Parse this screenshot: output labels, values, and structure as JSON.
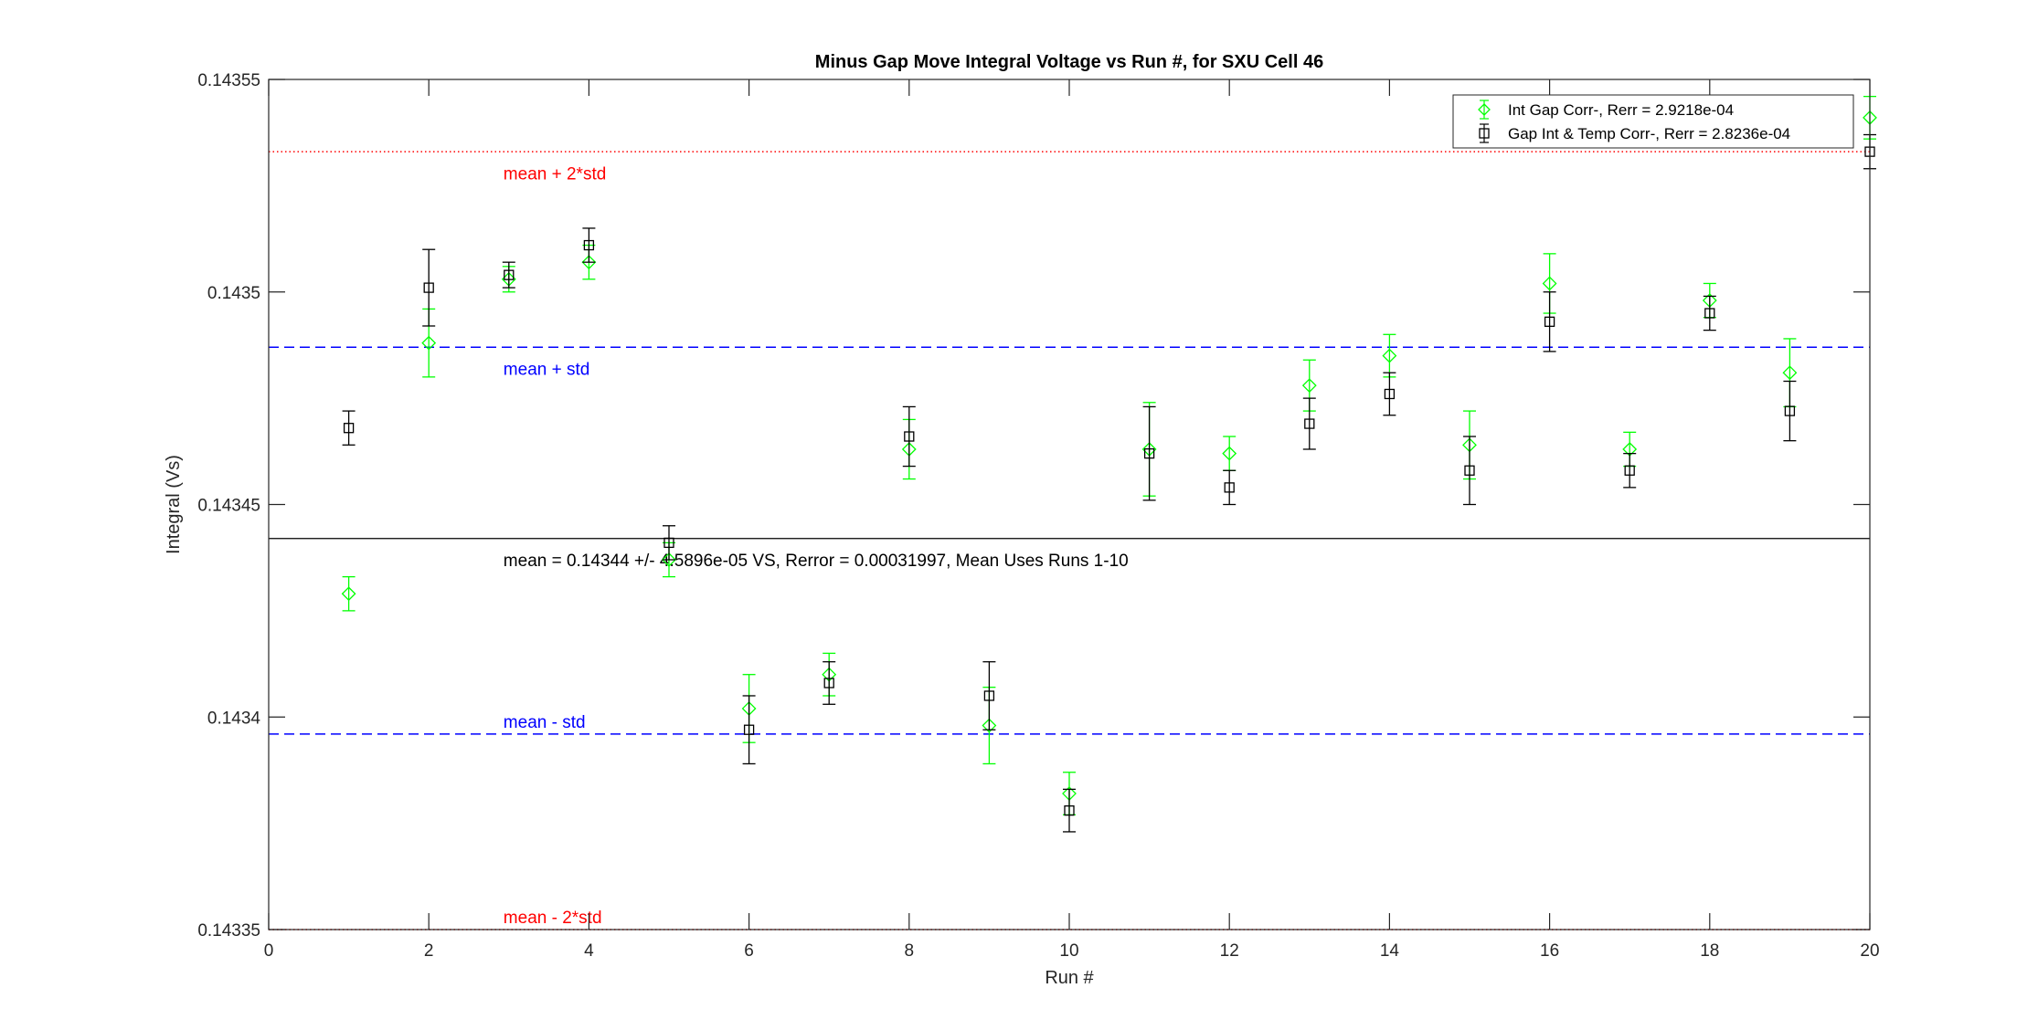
{
  "chart_data": {
    "type": "scatter",
    "title": "Minus Gap Move Integral Voltage vs Run #, for SXU Cell 46",
    "xlabel": "Run #",
    "ylabel": "Integral (Vs)",
    "xlim": [
      0,
      20
    ],
    "ylim": [
      0.14335,
      0.14355
    ],
    "x_ticks": [
      0,
      2,
      4,
      6,
      8,
      10,
      12,
      14,
      16,
      18,
      20
    ],
    "y_ticks": [
      0.14335,
      0.1434,
      0.14345,
      0.1435,
      0.14355
    ],
    "y_tick_labels": [
      "0.14335",
      "0.1434",
      "0.14345",
      "0.1435",
      "0.14355"
    ],
    "grid": false,
    "legend_position": "top-right",
    "series": [
      {
        "name": "Int Gap Corr-, Rerr = 2.9218e-04",
        "marker": "diamond",
        "color": "#00ff00",
        "x": [
          1,
          2,
          3,
          4,
          5,
          6,
          7,
          8,
          9,
          10,
          11,
          12,
          13,
          14,
          15,
          16,
          17,
          18,
          19,
          20
        ],
        "y": [
          0.143429,
          0.143488,
          0.143503,
          0.143507,
          0.143437,
          0.143402,
          0.14341,
          0.143463,
          0.143398,
          0.143382,
          0.143463,
          0.143462,
          0.143478,
          0.143485,
          0.143464,
          0.143502,
          0.143463,
          0.143498,
          0.143481,
          0.143541
        ],
        "err": [
          4e-06,
          8e-06,
          3e-06,
          4e-06,
          4e-06,
          8e-06,
          5e-06,
          7e-06,
          9e-06,
          5e-06,
          1.1e-05,
          4e-06,
          6e-06,
          5e-06,
          8e-06,
          7e-06,
          4e-06,
          4e-06,
          8e-06,
          5e-06
        ]
      },
      {
        "name": "Gap Int & Temp Corr-, Rerr = 2.8236e-04",
        "marker": "square",
        "color": "#000000",
        "x": [
          1,
          2,
          3,
          4,
          5,
          6,
          7,
          8,
          9,
          10,
          11,
          12,
          13,
          14,
          15,
          16,
          17,
          18,
          19,
          20
        ],
        "y": [
          0.143468,
          0.143501,
          0.143504,
          0.143511,
          0.143441,
          0.143397,
          0.143408,
          0.143466,
          0.143405,
          0.143378,
          0.143462,
          0.143454,
          0.143469,
          0.143476,
          0.143458,
          0.143493,
          0.143458,
          0.143495,
          0.143472,
          0.143533
        ],
        "err": [
          4e-06,
          9e-06,
          3e-06,
          4e-06,
          4e-06,
          8e-06,
          5e-06,
          7e-06,
          8e-06,
          5e-06,
          1.1e-05,
          4e-06,
          6e-06,
          5e-06,
          8e-06,
          7e-06,
          4e-06,
          4e-06,
          7e-06,
          4e-06
        ]
      }
    ],
    "reference_lines": [
      {
        "y": 0.143533,
        "color": "#ff0000",
        "style": "dotted",
        "label": "mean + 2*std",
        "label_x": 3,
        "label_y": 0.143528
      },
      {
        "y": 0.143487,
        "color": "#0000ff",
        "style": "dashed",
        "label": "mean + std",
        "label_x": 3,
        "label_y": 0.143482
      },
      {
        "y": 0.143442,
        "color": "#000000",
        "style": "solid",
        "label": "mean = 0.14344 +/- 4.5896e-05 VS, Rerror = 0.00031997, Mean Uses Runs 1-10",
        "label_x": 3,
        "label_y": 0.143437
      },
      {
        "y": 0.143396,
        "color": "#0000ff",
        "style": "dashed",
        "label": "mean - std",
        "label_x": 3,
        "label_y": 0.143399
      },
      {
        "y": 0.14335,
        "color": "#ff0000",
        "style": "dotted",
        "label": "mean - 2*std",
        "label_x": 3,
        "label_y": 0.143353
      }
    ]
  }
}
